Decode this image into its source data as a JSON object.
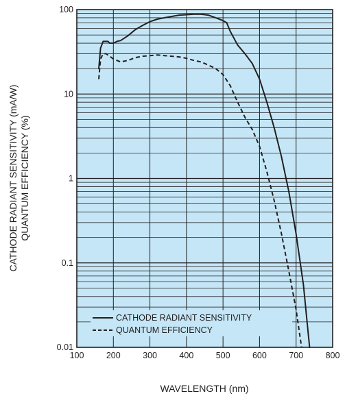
{
  "chart_data": {
    "type": "line",
    "title": "",
    "xlabel": "WAVELENGTH (nm)",
    "ylabel_lines": [
      "CATHODE RADIANT SENSITIVITY (mA/W)",
      "QUANTUM EFFICIENCY (%)"
    ],
    "xlim": [
      100,
      800
    ],
    "ylim": [
      0.01,
      100
    ],
    "yscale": "log",
    "grid": true,
    "x_ticks": [
      "100",
      "200",
      "300",
      "400",
      "500",
      "600",
      "700",
      "800"
    ],
    "y_ticks": [
      "0.01",
      "0.1",
      "1",
      "10",
      "100"
    ],
    "legend_position": "bottom-left, inside plot",
    "colors": {
      "plot_background": "#c5e6f6",
      "lines": "#231f20",
      "grid": "#231f20"
    },
    "series": [
      {
        "name": "CATHODE RADIANT SENSITIVITY",
        "style": "solid",
        "points": [
          [
            160,
            20
          ],
          [
            165,
            35
          ],
          [
            172,
            42
          ],
          [
            185,
            42
          ],
          [
            190,
            40
          ],
          [
            200,
            40
          ],
          [
            210,
            42
          ],
          [
            220,
            43
          ],
          [
            240,
            49
          ],
          [
            260,
            58
          ],
          [
            280,
            65
          ],
          [
            300,
            72
          ],
          [
            320,
            77
          ],
          [
            340,
            80
          ],
          [
            360,
            83
          ],
          [
            380,
            86
          ],
          [
            400,
            87
          ],
          [
            420,
            88
          ],
          [
            440,
            88
          ],
          [
            460,
            86
          ],
          [
            480,
            80
          ],
          [
            500,
            74
          ],
          [
            510,
            70
          ],
          [
            520,
            55
          ],
          [
            540,
            38
          ],
          [
            560,
            30
          ],
          [
            580,
            23
          ],
          [
            600,
            15
          ],
          [
            620,
            8
          ],
          [
            640,
            4
          ],
          [
            660,
            1.8
          ],
          [
            680,
            0.7
          ],
          [
            700,
            0.22
          ],
          [
            720,
            0.055
          ],
          [
            730,
            0.02
          ],
          [
            737,
            0.01
          ]
        ]
      },
      {
        "name": "QUANTUM EFFICIENCY",
        "style": "dashed",
        "points": [
          [
            160,
            15
          ],
          [
            165,
            26
          ],
          [
            172,
            30
          ],
          [
            180,
            30
          ],
          [
            190,
            28
          ],
          [
            200,
            26
          ],
          [
            220,
            24
          ],
          [
            240,
            25
          ],
          [
            260,
            27
          ],
          [
            280,
            28
          ],
          [
            300,
            28.5
          ],
          [
            320,
            29
          ],
          [
            340,
            28.5
          ],
          [
            360,
            28
          ],
          [
            380,
            27.5
          ],
          [
            400,
            26.5
          ],
          [
            420,
            25
          ],
          [
            440,
            24
          ],
          [
            460,
            22
          ],
          [
            480,
            20
          ],
          [
            500,
            17
          ],
          [
            520,
            12.5
          ],
          [
            540,
            8
          ],
          [
            560,
            5.3
          ],
          [
            580,
            3.8
          ],
          [
            600,
            2.4
          ],
          [
            620,
            1.2
          ],
          [
            640,
            0.55
          ],
          [
            660,
            0.22
          ],
          [
            680,
            0.08
          ],
          [
            700,
            0.028
          ],
          [
            715,
            0.01
          ]
        ]
      }
    ]
  }
}
